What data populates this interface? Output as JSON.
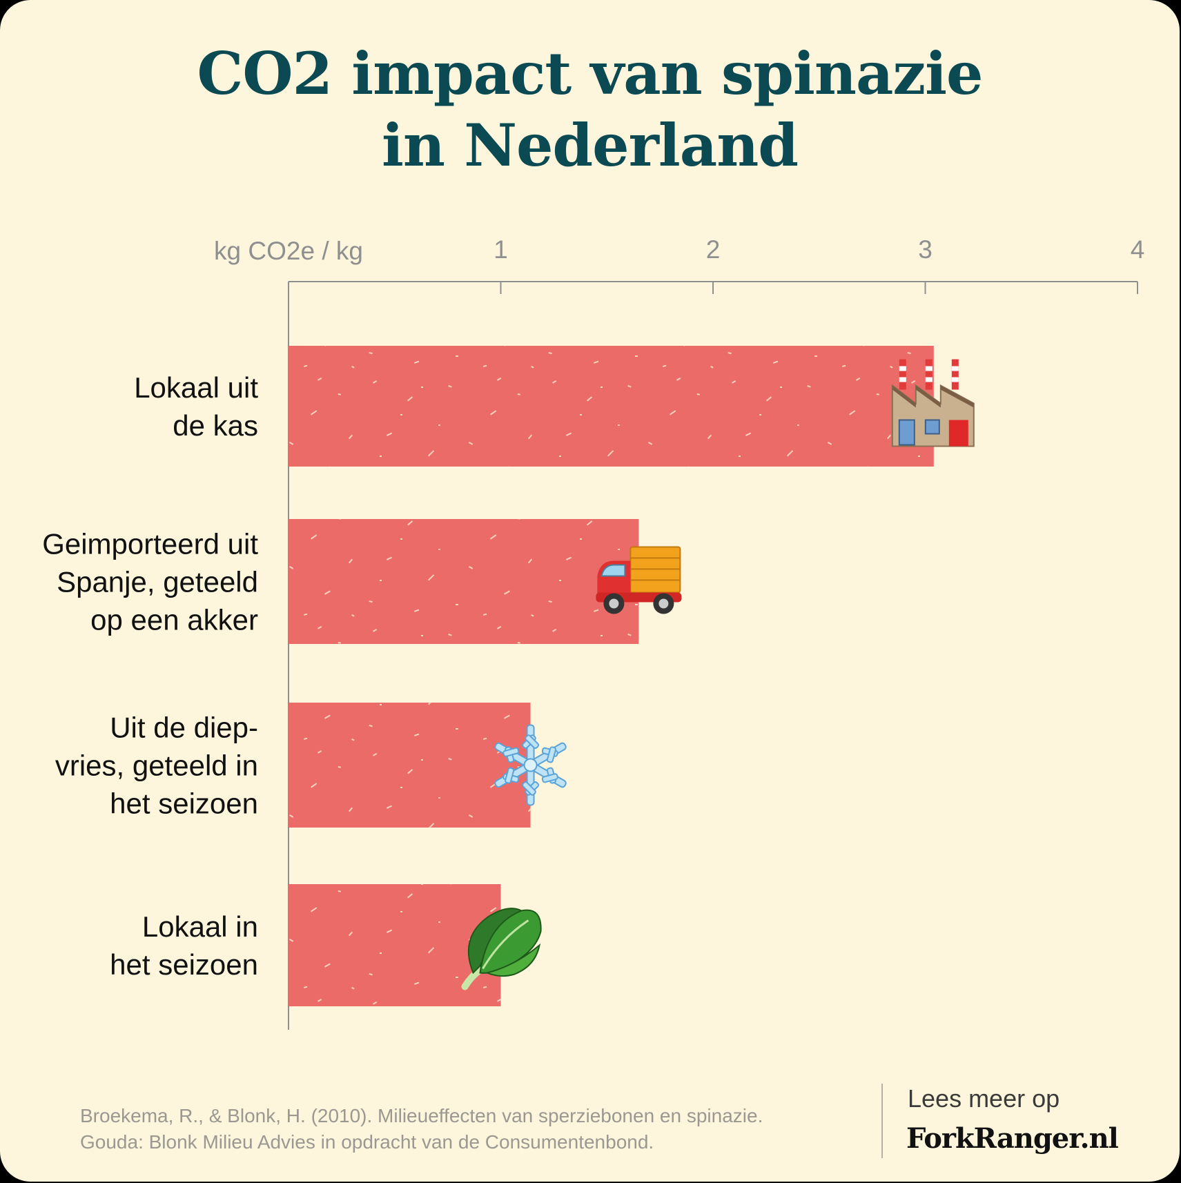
{
  "title": {
    "line1": "CO2 impact van spinazie",
    "line2": "in Nederland"
  },
  "chart_data": {
    "type": "bar",
    "orientation": "horizontal",
    "title": "CO2 impact van spinazie in Nederland",
    "xlabel": "kg CO2e / kg",
    "ylabel": "",
    "xlim": [
      0,
      4
    ],
    "xticks": [
      "1",
      "2",
      "3",
      "4"
    ],
    "tick_values": [
      1,
      2,
      3,
      4
    ],
    "grid": false,
    "categories": [
      [
        "Lokaal uit",
        "de kas"
      ],
      [
        "Geimporteerd uit",
        "Spanje, geteeld",
        "op een akker"
      ],
      [
        "Uit de diep-",
        "vries, geteeld in",
        "het seizoen"
      ],
      [
        "Lokaal in",
        "het seizoen"
      ]
    ],
    "values": [
      3.04,
      1.65,
      1.14,
      1.0
    ],
    "icons": [
      "factory-icon",
      "truck-icon",
      "snowflake-icon",
      "spinach-icon"
    ],
    "bar_color": "#eb6b68"
  },
  "colors": {
    "background": "#fdf5dc",
    "title": "#0b4a52",
    "bar": "#eb6b68",
    "axis": "#8f8f8f"
  },
  "footer": {
    "source_line1": "Broekema, R., & Blonk, H. (2010). Milieueffecten van sperziebonen en spinazie.",
    "source_line2": "Gouda: Blonk Milieu Advies in opdracht van de Consumentenbond.",
    "more_label": "Lees meer op",
    "brand": "ForkRanger.nl"
  }
}
